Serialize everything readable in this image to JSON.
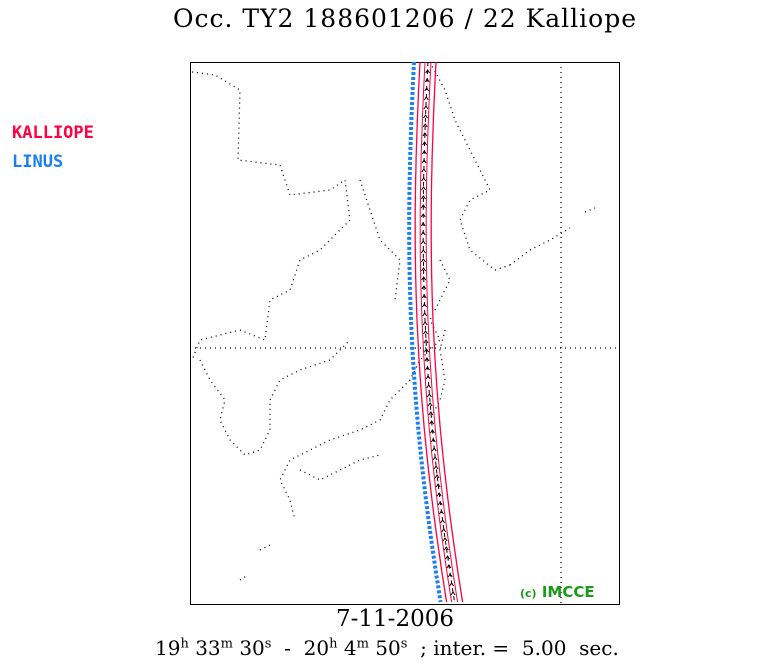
{
  "title": "Occ. TY2 188601206 / 22 Kalliope",
  "legend": [
    {
      "label": "KALLIOPE",
      "color": "#ff0040"
    },
    {
      "label": "LINUS",
      "color": "#1a7ff0"
    }
  ],
  "date": "7-11-2006",
  "time_range": {
    "start_h": "19",
    "start_m": "33",
    "start_s": "30",
    "end_h": "20",
    "end_m": "4",
    "end_s": "50",
    "sep": "-",
    "interval_label": "; inter. =",
    "interval_value": "5.00",
    "interval_unit": "sec.",
    "h": "h",
    "m": "m",
    "s": "s"
  },
  "copyright": {
    "prefix": "(c)",
    "name": "IMCCE"
  },
  "colors": {
    "kalliope": "#ff0040",
    "linus": "#1a7ff0",
    "copyright": "#1a9a1a"
  }
}
